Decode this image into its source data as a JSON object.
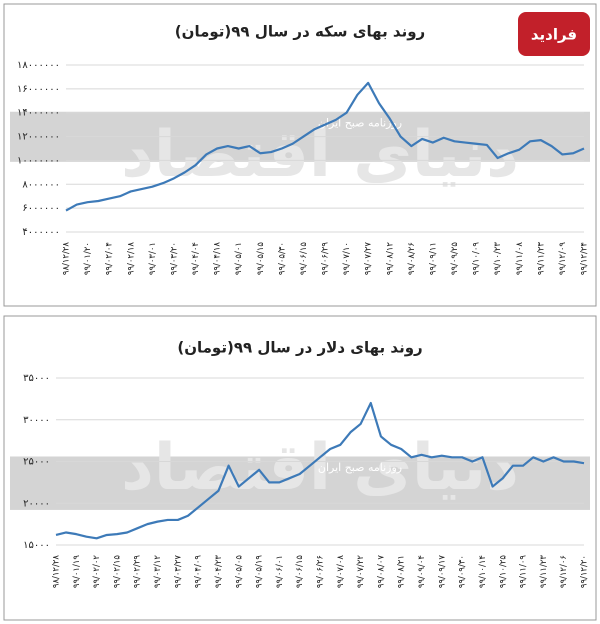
{
  "logo": "فرادید",
  "chart_data": [
    {
      "type": "line",
      "title": "روند بهای سکه در سال ۹۹(تومان)",
      "watermark": "دنیای اقتصاد",
      "watermark_sub": "روزنامه صبح ایران",
      "categories": [
        "۹۸/۱۲/۲۸",
        null,
        "۹۹/۰۱/۲۰",
        null,
        "۹۹/۰۲/۰۴",
        null,
        "۹۹/۰۲/۱۸",
        null,
        "۹۹/۰۳/۰۱",
        null,
        "۹۹/۰۳/۲۰",
        null,
        "۹۹/۰۴/۰۴",
        null,
        "۹۹/۰۴/۱۸",
        null,
        "۹۹/۰۵/۰۱",
        null,
        "۹۹/۰۵/۱۵",
        null,
        "۹۹/۰۵/۳۰",
        null,
        "۹۹/۰۶/۱۵",
        null,
        "۹۹/۰۶/۲۹",
        null,
        "۹۹/۰۷/۱۰",
        null,
        "۹۹/۰۷/۲۷",
        null,
        "۹۹/۰۸/۱۲",
        null,
        "۹۹/۰۸/۲۶",
        null,
        "۹۹/۰۹/۱۱",
        null,
        "۹۹/۰۹/۲۵",
        null,
        "۹۹/۱۰/۰۹",
        null,
        "۹۹/۱۰/۲۳",
        null,
        "۹۹/۱۱/۰۸",
        null,
        "۹۹/۱۱/۲۳",
        null,
        "۹۹/۱۲/۰۹",
        null,
        "۹۹/۱۲/۲۴"
      ],
      "series": [
        {
          "color": "#3d7ab8",
          "values": [
            5800000,
            6300000,
            6500000,
            6600000,
            6800000,
            7000000,
            7400000,
            7600000,
            7800000,
            8100000,
            8500000,
            9000000,
            9600000,
            10500000,
            11000000,
            11200000,
            11000000,
            11200000,
            10600000,
            10700000,
            11000000,
            11400000,
            12000000,
            12600000,
            13000000,
            13400000,
            14000000,
            15500000,
            16500000,
            14800000,
            13500000,
            12000000,
            11200000,
            11800000,
            11500000,
            11900000,
            11600000,
            11500000,
            11400000,
            11300000,
            10200000,
            10600000,
            10900000,
            11600000,
            11700000,
            11200000,
            10500000,
            10600000,
            11000000
          ]
        }
      ],
      "ylim": [
        4000000,
        18000000
      ],
      "yticks": [
        {
          "value": 4000000,
          "label": "۴۰۰۰۰۰۰"
        },
        {
          "value": 6000000,
          "label": "۶۰۰۰۰۰۰"
        },
        {
          "value": 8000000,
          "label": "۸۰۰۰۰۰۰"
        },
        {
          "value": 10000000,
          "label": "۱۰۰۰۰۰۰۰"
        },
        {
          "value": 12000000,
          "label": "۱۲۰۰۰۰۰۰"
        },
        {
          "value": 14000000,
          "label": "۱۴۰۰۰۰۰۰"
        },
        {
          "value": 16000000,
          "label": "۱۶۰۰۰۰۰۰"
        },
        {
          "value": 18000000,
          "label": "۱۸۰۰۰۰۰۰"
        }
      ],
      "grid": true
    },
    {
      "type": "line",
      "title": "روند بهای دلار در سال ۹۹(تومان)",
      "watermark": "دنیای اقتصاد",
      "watermark_sub": "روزنامه صبح ایران",
      "categories": [
        "۹۸/۱۲/۲۸",
        null,
        "۹۹/۰۱/۱۹",
        null,
        "۹۹/۰۲/۰۲",
        null,
        "۹۹/۰۲/۱۵",
        null,
        "۹۹/۰۲/۲۹",
        null,
        "۹۹/۰۳/۱۲",
        null,
        "۹۹/۰۳/۲۷",
        null,
        "۹۹/۰۴/۰۹",
        null,
        "۹۹/۰۴/۲۳",
        null,
        "۹۹/۰۵/۰۵",
        null,
        "۹۹/۰۵/۱۹",
        null,
        "۹۹/۰۶/۰۱",
        null,
        "۹۹/۰۶/۱۵",
        null,
        "۹۹/۰۶/۲۶",
        null,
        "۹۹/۰۷/۰۸",
        null,
        "۹۹/۰۷/۲۲",
        null,
        "۹۹/۰۸/۰۷",
        null,
        "۹۹/۰۸/۲۱",
        null,
        "۹۹/۰۹/۰۴",
        null,
        "۹۹/۰۹/۱۷",
        null,
        "۹۹/۰۹/۳۰",
        null,
        "۹۹/۱۰/۱۴",
        null,
        "۹۹/۱۰/۲۵",
        null,
        "۹۹/۱۱/۰۹",
        null,
        "۹۹/۱۱/۲۳",
        null,
        "۹۹/۱۲/۰۶",
        null,
        "۹۹/۱۲/۲۰"
      ],
      "series": [
        {
          "color": "#3d7ab8",
          "values": [
            16200,
            16500,
            16300,
            16000,
            15800,
            16200,
            16300,
            16500,
            17000,
            17500,
            17800,
            18000,
            18000,
            18500,
            19500,
            20500,
            21500,
            24500,
            22000,
            23000,
            24000,
            22500,
            22500,
            23000,
            23500,
            24500,
            25500,
            26500,
            27000,
            28500,
            29500,
            32000,
            28000,
            27000,
            26500,
            25500,
            25800,
            25500,
            25700,
            25500,
            25500,
            25000,
            25500,
            22000,
            23000,
            24500,
            24500,
            25500,
            25000,
            25500,
            25000,
            25000,
            24800
          ]
        }
      ],
      "ylim": [
        15000,
        35000
      ],
      "yticks": [
        {
          "value": 15000,
          "label": "۱۵۰۰۰"
        },
        {
          "value": 20000,
          "label": "۲۰۰۰۰"
        },
        {
          "value": 25000,
          "label": "۲۵۰۰۰"
        },
        {
          "value": 30000,
          "label": "۳۰۰۰۰"
        },
        {
          "value": 35000,
          "label": "۳۵۰۰۰"
        }
      ],
      "grid": true
    }
  ]
}
